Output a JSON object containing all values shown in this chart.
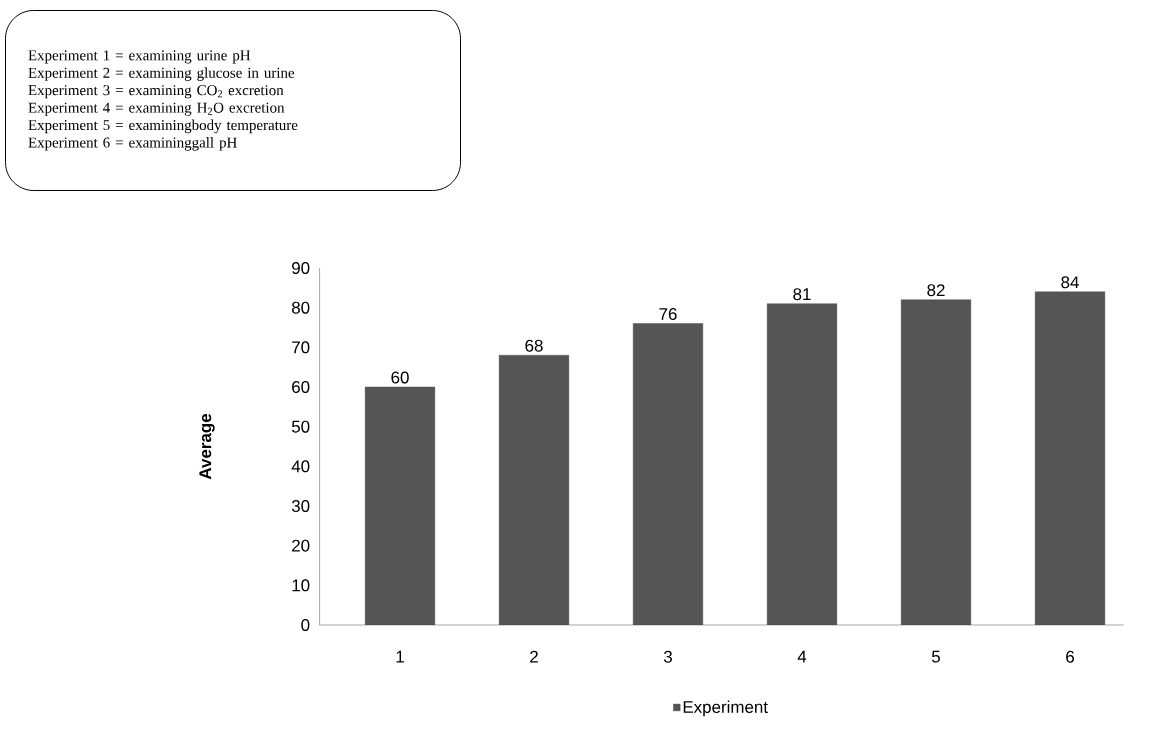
{
  "chart_data": {
    "type": "bar",
    "categories": [
      "1",
      "2",
      "3",
      "4",
      "5",
      "6"
    ],
    "series": [
      {
        "name": "Experiment",
        "color": "#555555",
        "values": [
          60,
          68,
          76,
          81,
          82,
          84
        ]
      }
    ],
    "ylabel": "Average",
    "ylim": [
      0,
      90
    ],
    "yticks": [
      0,
      10,
      20,
      30,
      40,
      50,
      60,
      70,
      80,
      90
    ],
    "data_labels": true,
    "legend": "bottom",
    "grid": false,
    "annotations": [
      "Experiment 1 = examining urine pH",
      "Experiment 2 = examining glucose in urine",
      "Experiment 3 = examining CO$_{2}$ excretion",
      "Experiment 4 = examining H$_{2}$O excretion",
      "Experiment 5 = examiningbody temperature",
      "Experiment 6 = examininggall pH"
    ]
  }
}
